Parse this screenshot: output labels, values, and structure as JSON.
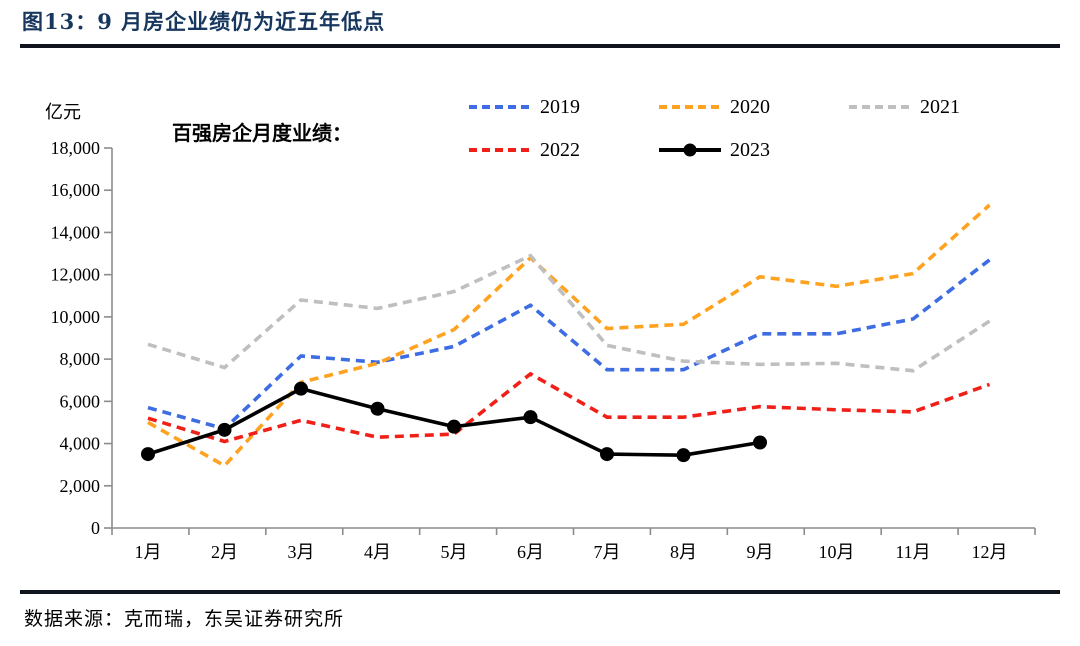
{
  "figure": {
    "title": "图13：9 月房企业绩仍为近五年低点",
    "source": "数据来源：克而瑞，东吴证券研究所"
  },
  "chart_data": {
    "type": "line",
    "title": "百强房企月度业绩：",
    "unit_label": "亿元",
    "categories": [
      "1月",
      "2月",
      "3月",
      "4月",
      "5月",
      "6月",
      "7月",
      "8月",
      "9月",
      "10月",
      "11月",
      "12月"
    ],
    "y_tick_labels": [
      "0",
      "2,000",
      "4,000",
      "6,000",
      "8,000",
      "10,000",
      "12,000",
      "14,000",
      "16,000",
      "18,000"
    ],
    "ylim": [
      0,
      18000
    ],
    "grid": false,
    "legend_position": "top",
    "axis_color": "#8c8c8c",
    "series": [
      {
        "name": "2019",
        "color": "#3D6CE3",
        "style": "dashed",
        "values": [
          5700,
          4700,
          8150,
          7850,
          8600,
          10550,
          7500,
          7500,
          9200,
          9200,
          9900,
          12700
        ]
      },
      {
        "name": "2020",
        "color": "#FFA21F",
        "style": "dashed",
        "values": [
          5000,
          2950,
          6900,
          7800,
          9400,
          12800,
          9450,
          9650,
          11900,
          11450,
          12050,
          15300
        ]
      },
      {
        "name": "2021",
        "color": "#BFBFBF",
        "style": "dashed",
        "values": [
          8700,
          7600,
          10800,
          10400,
          11200,
          12900,
          8650,
          7900,
          7750,
          7800,
          7450,
          9800
        ]
      },
      {
        "name": "2022",
        "color": "#F02018",
        "style": "dashed",
        "values": [
          5200,
          4100,
          5100,
          4300,
          4450,
          7300,
          5250,
          5250,
          5750,
          5600,
          5500,
          6800
        ]
      },
      {
        "name": "2023",
        "color": "#000000",
        "style": "solid-marker",
        "values": [
          3500,
          4650,
          6600,
          5650,
          4800,
          5250,
          3500,
          3450,
          4050,
          null,
          null,
          null
        ]
      }
    ]
  }
}
